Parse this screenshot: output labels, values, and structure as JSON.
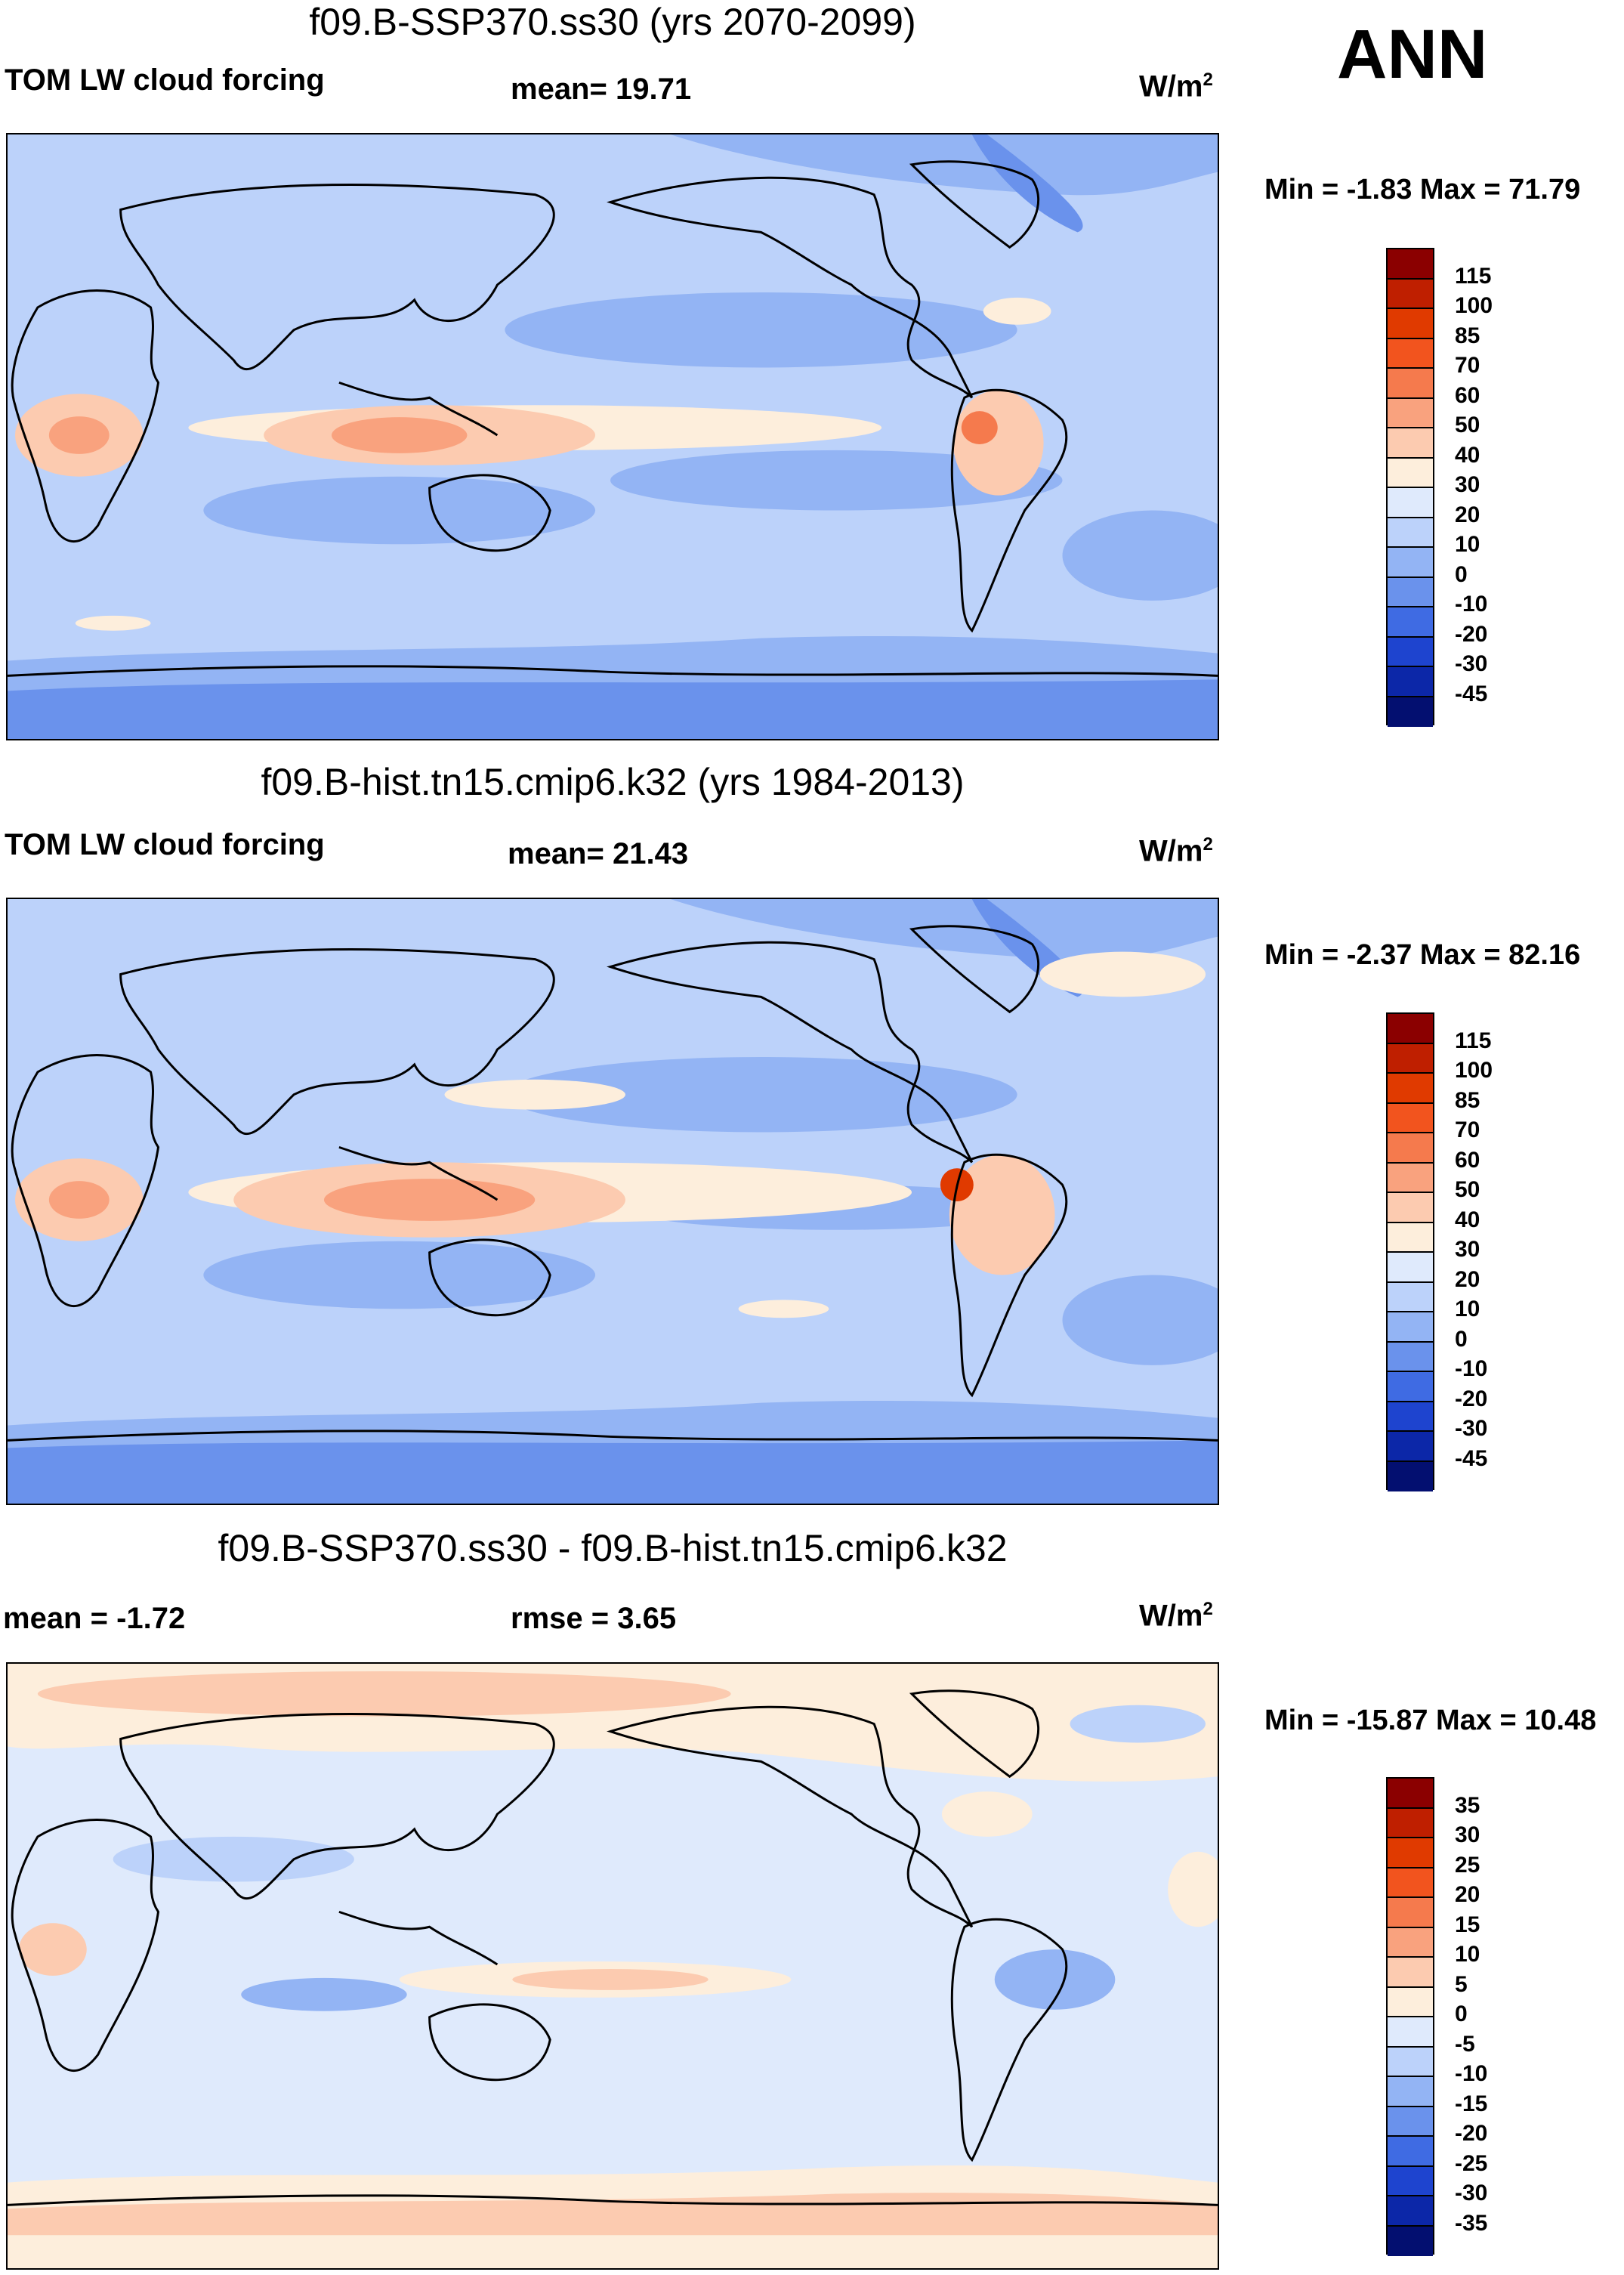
{
  "season": "ANN",
  "units_base": "W/m",
  "units_exp": "2",
  "panels": [
    {
      "title": "f09.B-SSP370.ss30 (yrs 2070-2099)",
      "left_label": "TOM LW cloud forcing",
      "center_label": "mean=  19.71",
      "minmax": "Min =  -1.83 Max =  71.79",
      "scale": "abs"
    },
    {
      "title": "f09.B-hist.tn15.cmip6.k32 (yrs 1984-2013)",
      "left_label": "TOM LW cloud forcing",
      "center_label": "mean=  21.43",
      "minmax": "Min =  -2.37 Max =  82.16",
      "scale": "abs"
    },
    {
      "title": "f09.B-SSP370.ss30 - f09.B-hist.tn15.cmip6.k32",
      "left_label": "mean =  -1.72",
      "center_label": "rmse =   3.65",
      "minmax": "Min = -15.87 Max =  10.48",
      "scale": "diff"
    }
  ],
  "colorbars": {
    "abs": {
      "ticks": [
        "115",
        "100",
        "85",
        "70",
        "60",
        "50",
        "40",
        "30",
        "20",
        "10",
        "0",
        "-10",
        "-20",
        "-30",
        "-45"
      ],
      "colors": [
        "#8b0000",
        "#bf1f00",
        "#e03a00",
        "#f2541e",
        "#f57a4d",
        "#f9a27e",
        "#fccbb0",
        "#fdeedc",
        "#dfeafc",
        "#bcd2fa",
        "#93b4f4",
        "#6a92ec",
        "#3f6be3",
        "#1e44cf",
        "#0c27a8",
        "#030f70"
      ]
    },
    "diff": {
      "ticks": [
        "35",
        "30",
        "25",
        "20",
        "15",
        "10",
        "5",
        "0",
        "-5",
        "-10",
        "-15",
        "-20",
        "-25",
        "-30",
        "-35"
      ],
      "colors": [
        "#8b0000",
        "#bf1f00",
        "#e03a00",
        "#f2541e",
        "#f57a4d",
        "#f9a27e",
        "#fccbb0",
        "#fdeedc",
        "#dfeafc",
        "#bcd2fa",
        "#93b4f4",
        "#6a92ec",
        "#3f6be3",
        "#1e44cf",
        "#0c27a8",
        "#030f70"
      ]
    }
  }
}
